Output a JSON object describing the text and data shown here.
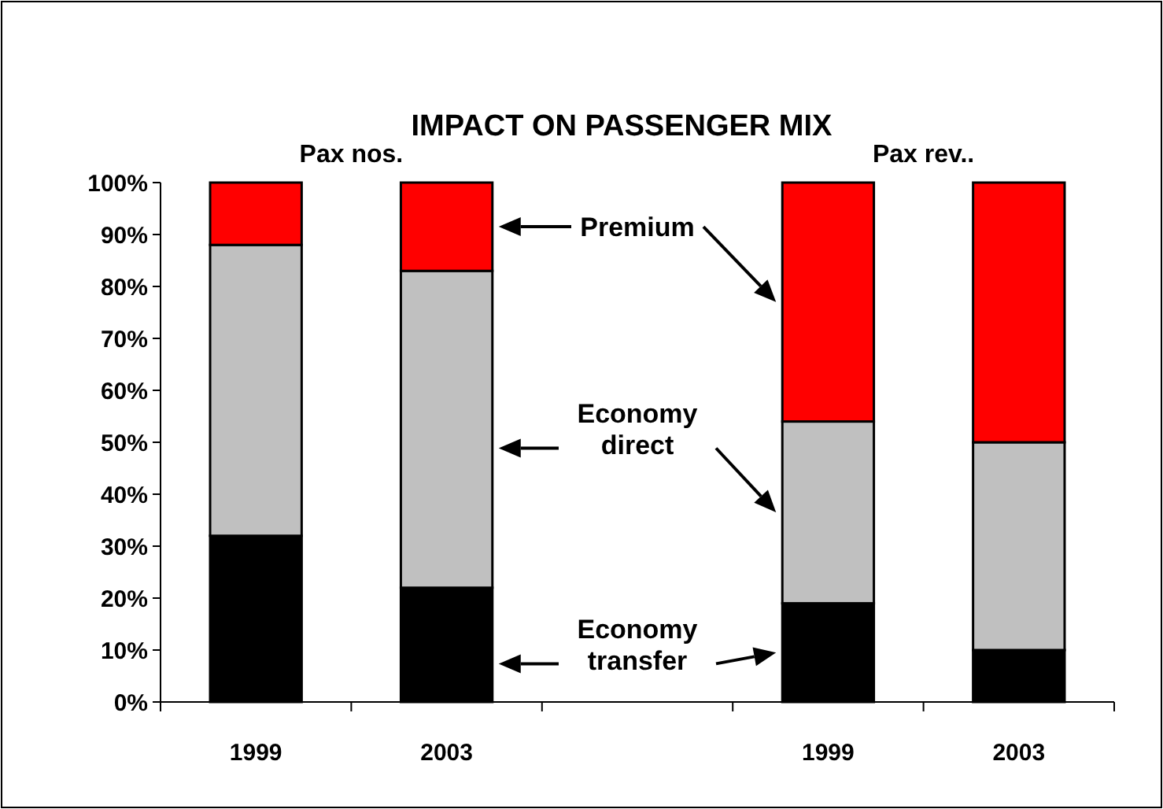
{
  "chart_data": {
    "type": "bar",
    "title": "IMPACT ON PASSENGER MIX",
    "stacked": true,
    "categories": [
      "1999",
      "2003",
      null,
      "1999",
      "2003"
    ],
    "series": [
      {
        "name": "Economy transfer",
        "color": "#000000",
        "values": [
          32,
          22,
          null,
          19,
          10
        ]
      },
      {
        "name": "Economy direct",
        "color": "#c0c0c0",
        "values": [
          56,
          61,
          null,
          35,
          40
        ]
      },
      {
        "name": "Premium",
        "color": "#ff0000",
        "values": [
          12,
          17,
          null,
          46,
          50
        ]
      }
    ],
    "ylim": [
      0,
      100
    ],
    "yticks": [
      {
        "value": 0,
        "label": "0%"
      },
      {
        "value": 10,
        "label": "10%"
      },
      {
        "value": 20,
        "label": "20%"
      },
      {
        "value": 30,
        "label": "30%"
      },
      {
        "value": 40,
        "label": "40%"
      },
      {
        "value": 50,
        "label": "50%"
      },
      {
        "value": 60,
        "label": "60%"
      },
      {
        "value": 70,
        "label": "70%"
      },
      {
        "value": 80,
        "label": "80%"
      },
      {
        "value": 90,
        "label": "90%"
      },
      {
        "value": 100,
        "label": "100%"
      }
    ],
    "annotations": [
      "Pax nos.",
      "Pax rev.."
    ],
    "grid": false,
    "legend": "center"
  }
}
